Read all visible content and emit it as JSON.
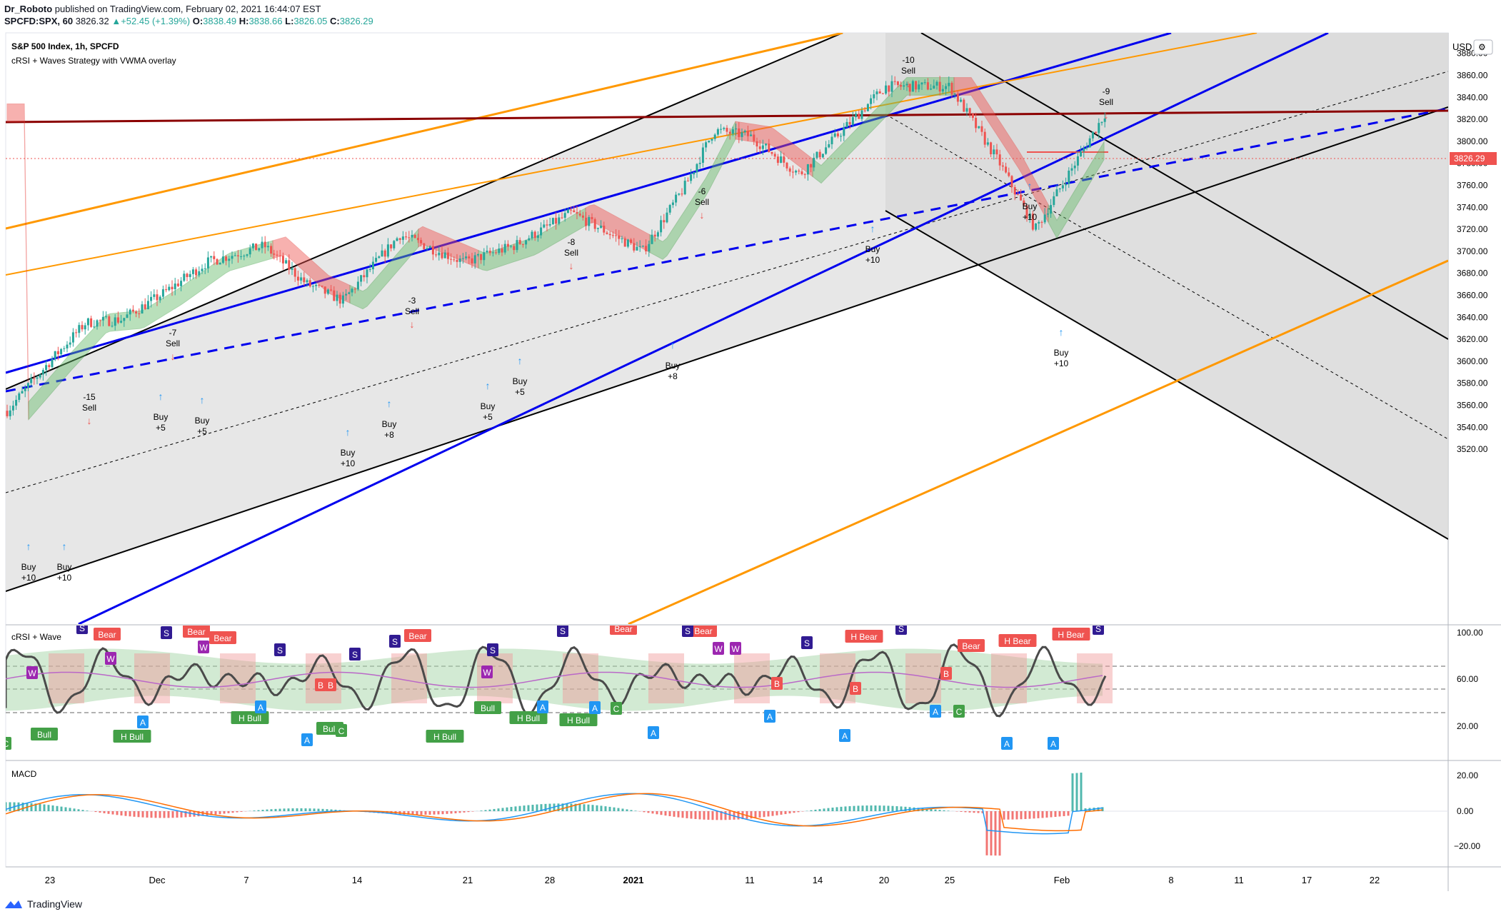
{
  "header": {
    "line1_author": "Dr_Roboto",
    "line1_rest": "published on TradingView.com, February 02, 2021 16:44:07 EST",
    "symbol": "SPCFD:SPX, 60",
    "last": "3826.32",
    "change": "+52.45 (+1.39%)",
    "o_label": "O:",
    "o_val": "3838.49",
    "h_label": "H:",
    "h_val": "3838.66",
    "l_label": "L:",
    "l_val": "3826.05",
    "c_label": "C:",
    "c_val": "3826.29"
  },
  "legend": {
    "title": "S&P 500 Index, 1h, SPCFD",
    "subtitle": "cRSI + Waves Strategy with VWMA overlay"
  },
  "price_axis": {
    "currency": "USD",
    "price_tag": "3826.29",
    "ticks": [
      "3880.00",
      "3860.00",
      "3840.00",
      "3820.00",
      "3800.00",
      "3780.00",
      "3760.00",
      "3740.00",
      "3720.00",
      "3700.00",
      "3680.00",
      "3660.00",
      "3640.00",
      "3620.00",
      "3600.00",
      "3580.00",
      "3560.00",
      "3540.00",
      "3520.00"
    ]
  },
  "x_axis": {
    "ticks": [
      "23",
      "Dec",
      "7",
      "14",
      "21",
      "28",
      "2021",
      "11",
      "14",
      "20",
      "25",
      "Feb",
      "8",
      "11",
      "17",
      "22"
    ]
  },
  "crsi_pane": {
    "title": "cRSI + Wave",
    "ticks": [
      "100.00",
      "60.00",
      "20.00"
    ]
  },
  "macd_pane": {
    "title": "MACD",
    "ticks": [
      "20.00",
      "0.00",
      "−20.00"
    ]
  },
  "signals": [
    {
      "text": "Buy",
      "sub": "+10"
    },
    {
      "text": "Buy",
      "sub": "+10"
    },
    {
      "text": "-15",
      "sub": "Sell"
    },
    {
      "text": "Buy",
      "sub": "+5"
    },
    {
      "text": "-7",
      "sub": "Sell"
    },
    {
      "text": "Buy",
      "sub": "+5"
    },
    {
      "text": "Buy",
      "sub": "+10"
    },
    {
      "text": "Buy",
      "sub": "+8"
    },
    {
      "text": "-3",
      "sub": "Sell"
    },
    {
      "text": "Buy",
      "sub": "+5"
    },
    {
      "text": "Buy",
      "sub": "+5"
    },
    {
      "text": "-8",
      "sub": "Sell"
    },
    {
      "text": "Buy",
      "sub": "+8"
    },
    {
      "text": "-6",
      "sub": "Sell"
    },
    {
      "text": "Buy",
      "sub": "+10"
    },
    {
      "text": "-10",
      "sub": "Sell"
    },
    {
      "text": "Buy",
      "sub": "+10"
    },
    {
      "text": "Buy",
      "sub": "+10"
    },
    {
      "text": "-9",
      "sub": "Sell"
    }
  ],
  "crsi_tags": {
    "bear": "Bear",
    "h_bear": "H Bear",
    "bull": "Bull",
    "h_bull": "H Bull",
    "s": "S",
    "w": "W",
    "a": "A",
    "b": "B",
    "c": "C"
  },
  "footer": {
    "brand": "TradingView"
  },
  "colors": {
    "up": "#26a69a",
    "down": "#ef5350",
    "blue_line": "#0000ee",
    "orange_line": "#ff9800",
    "dark_red": "#8b0000",
    "channel_fill": "#e0e0e0",
    "wave": "#4a4a4a"
  },
  "chart_data": {
    "type": "candlestick",
    "title": "S&P 500 Index, 1h, SPCFD",
    "y_range": [
      3510,
      3895
    ],
    "approx_close_path": [
      [
        "Nov 19",
        3555
      ],
      [
        "Nov 23",
        3600
      ],
      [
        "Nov 25",
        3635
      ],
      [
        "Nov 27",
        3638
      ],
      [
        "Dec 1",
        3660
      ],
      [
        "Dec 4",
        3690
      ],
      [
        "Dec 8",
        3705
      ],
      [
        "Dec 11",
        3670
      ],
      [
        "Dec 14",
        3655
      ],
      [
        "Dec 17",
        3715
      ],
      [
        "Dec 21",
        3690
      ],
      [
        "Dec 24",
        3705
      ],
      [
        "Dec 29",
        3735
      ],
      [
        "Jan 4",
        3700
      ],
      [
        "Jan 6",
        3760
      ],
      [
        "Jan 8",
        3810
      ],
      [
        "Jan 12",
        3805
      ],
      [
        "Jan 15",
        3770
      ],
      [
        "Jan 20",
        3850
      ],
      [
        "Jan 25",
        3850
      ],
      [
        "Jan 27",
        3780
      ],
      [
        "Jan 29",
        3720
      ],
      [
        "Feb 2",
        3826
      ]
    ],
    "last_close": 3826.29
  }
}
